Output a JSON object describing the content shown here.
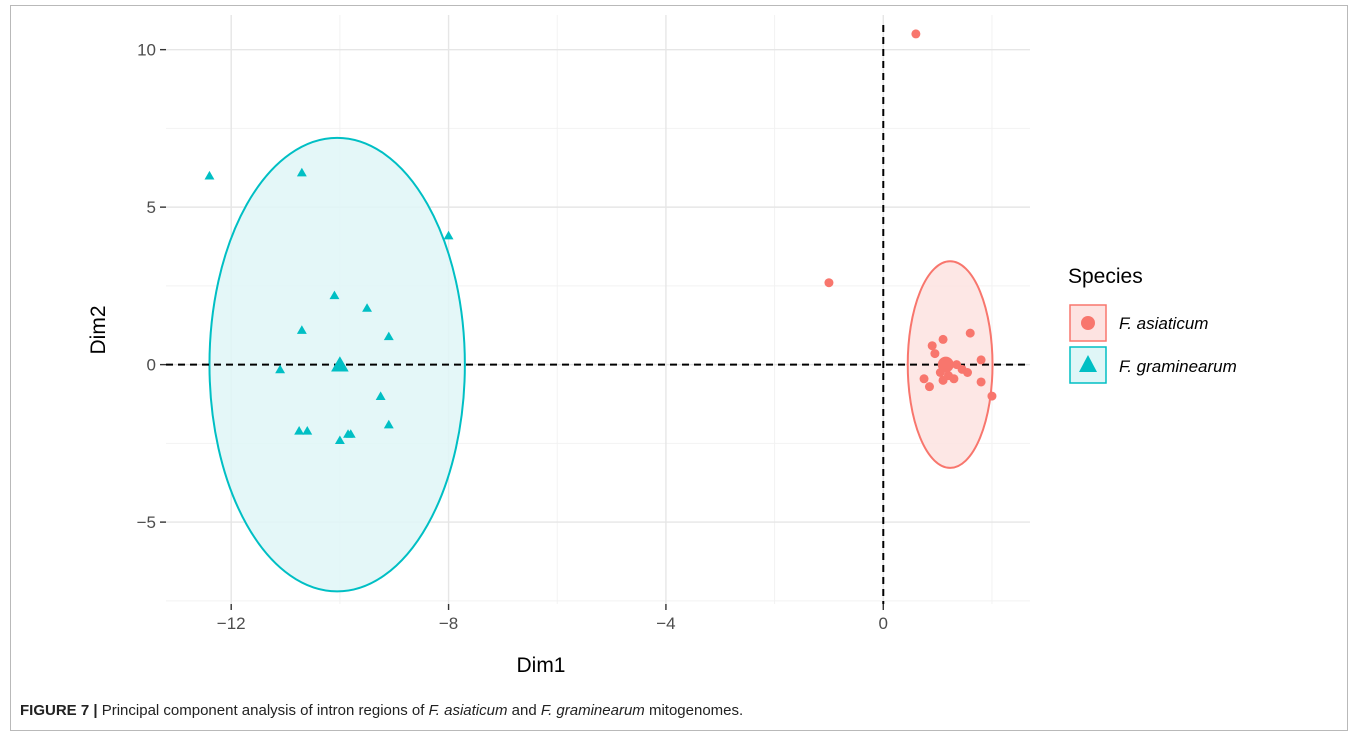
{
  "chart_data": {
    "type": "scatter",
    "xlabel": "Dim1",
    "ylabel": "Dim2",
    "xlim": [
      -13.2,
      2.7
    ],
    "ylim": [
      -7.6,
      11.1
    ],
    "xticks": [
      -12,
      -8,
      -4,
      0
    ],
    "xtick_labels": [
      "−12",
      "−8",
      "−4",
      "0"
    ],
    "yticks": [
      -5,
      0,
      5,
      10
    ],
    "ytick_labels": [
      "−5",
      "0",
      "5",
      "10"
    ],
    "grid": true,
    "reference_lines": {
      "x": 0,
      "y": 0,
      "style": "dashed"
    },
    "legend": {
      "title": "Species",
      "position": "right",
      "entries": [
        "F. asiaticum",
        "F. graminearum"
      ]
    },
    "series": [
      {
        "name": "F. asiaticum",
        "color": "#f8766d",
        "marker": "circle",
        "points": [
          [
            0.6,
            10.5
          ],
          [
            -1.0,
            2.6
          ],
          [
            1.1,
            0.8
          ],
          [
            0.9,
            0.6
          ],
          [
            1.6,
            1.0
          ],
          [
            0.95,
            0.35
          ],
          [
            1.8,
            0.15
          ],
          [
            0.75,
            -0.45
          ],
          [
            0.85,
            -0.7
          ],
          [
            1.05,
            -0.25
          ],
          [
            1.2,
            -0.35
          ],
          [
            1.1,
            -0.5
          ],
          [
            1.3,
            -0.45
          ],
          [
            1.45,
            -0.15
          ],
          [
            1.55,
            -0.25
          ],
          [
            1.8,
            -0.55
          ],
          [
            2.0,
            -1.0
          ],
          [
            1.35,
            0.0
          ]
        ],
        "centroid": [
          1.15,
          0.0
        ],
        "ellipse": {
          "center": [
            1.23,
            0.0
          ],
          "rx": 0.78,
          "ry": 3.28
        }
      },
      {
        "name": "F. graminearum",
        "color": "#00bfc4",
        "marker": "triangle",
        "points": [
          [
            -12.4,
            6.0
          ],
          [
            -10.7,
            6.1
          ],
          [
            -8.0,
            4.1
          ],
          [
            -10.1,
            2.2
          ],
          [
            -9.5,
            1.8
          ],
          [
            -10.7,
            1.1
          ],
          [
            -9.1,
            0.9
          ],
          [
            -11.1,
            -0.15
          ],
          [
            -9.25,
            -1.0
          ],
          [
            -10.75,
            -2.1
          ],
          [
            -10.6,
            -2.1
          ],
          [
            -9.85,
            -2.2
          ],
          [
            -9.8,
            -2.2
          ],
          [
            -10.0,
            -2.4
          ],
          [
            -9.1,
            -1.9
          ]
        ],
        "centroid": [
          -10.0,
          0.0
        ],
        "ellipse": {
          "center": [
            -10.05,
            0.0
          ],
          "rx": 2.35,
          "ry": 7.2
        }
      }
    ]
  },
  "caption": {
    "label": "FIGURE 7 |",
    "text_pre": " Principal component analysis of intron regions of ",
    "species1": "F. asiaticum",
    "text_mid": " and ",
    "species2": "F. graminearum",
    "text_post": " mitogenomes."
  }
}
